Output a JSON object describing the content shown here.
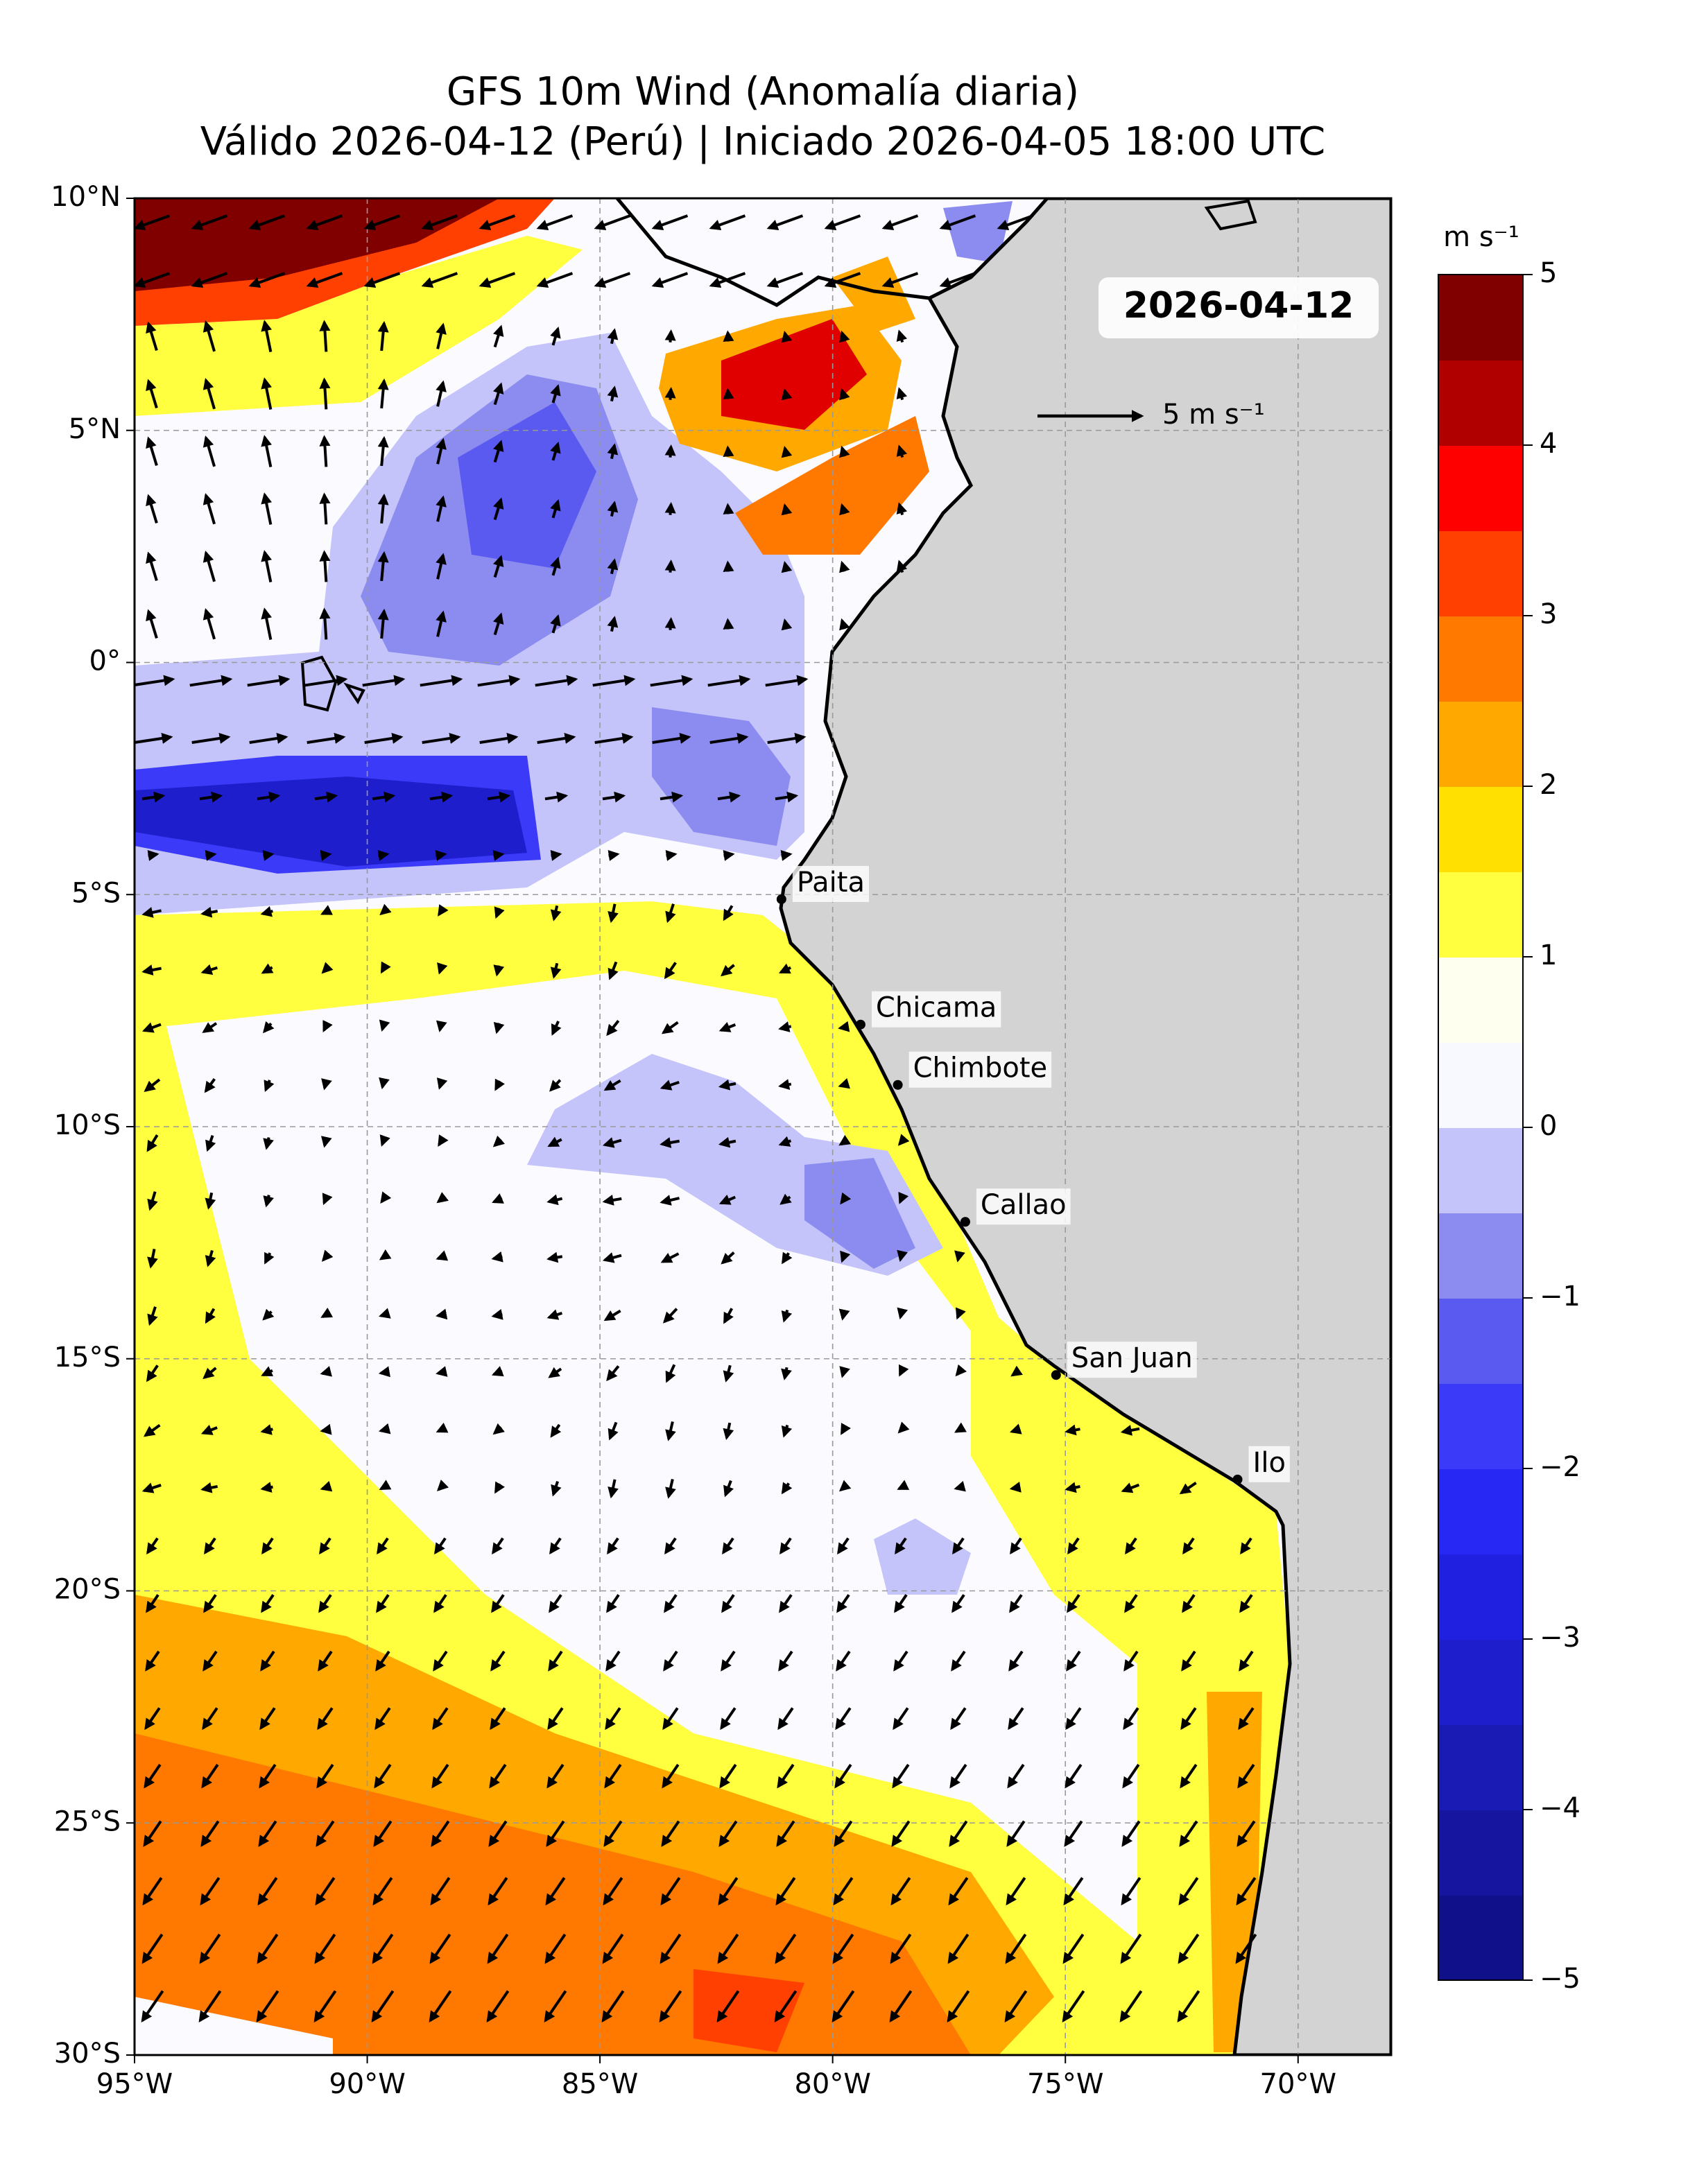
{
  "chart_data": {
    "type": "map",
    "title": "GFS 10m Wind (Anomalía diaria)",
    "subtitle": "Válido 2026-04-12 (Perú) | Iniciado 2026-04-05 18:00 UTC",
    "date_label": "2026-04-12",
    "xlim": [
      -95,
      -68
    ],
    "ylim": [
      -30,
      10
    ],
    "xticks": [
      {
        "value": -95,
        "label": "95°W"
      },
      {
        "value": -90,
        "label": "90°W"
      },
      {
        "value": -85,
        "label": "85°W"
      },
      {
        "value": -80,
        "label": "80°W"
      },
      {
        "value": -75,
        "label": "75°W"
      },
      {
        "value": -70,
        "label": "70°W"
      }
    ],
    "yticks": [
      {
        "value": 10,
        "label": "10°N"
      },
      {
        "value": 5,
        "label": "5°N"
      },
      {
        "value": 0,
        "label": "0°"
      },
      {
        "value": -5,
        "label": "5°S"
      },
      {
        "value": -10,
        "label": "10°S"
      },
      {
        "value": -15,
        "label": "15°S"
      },
      {
        "value": -20,
        "label": "20°S"
      },
      {
        "value": -25,
        "label": "25°S"
      },
      {
        "value": -30,
        "label": "30°S"
      }
    ],
    "grid": true,
    "reference_arrow": {
      "value": 5,
      "label": "5 m s⁻¹"
    },
    "cities": [
      {
        "name": "Paita",
        "lon": -81.1,
        "lat": -5.1
      },
      {
        "name": "Chicama",
        "lon": -79.4,
        "lat": -7.8
      },
      {
        "name": "Chimbote",
        "lon": -78.6,
        "lat": -9.1
      },
      {
        "name": "Callao",
        "lon": -77.15,
        "lat": -12.05
      },
      {
        "name": "San Juan",
        "lon": -75.2,
        "lat": -15.35
      },
      {
        "name": "Ilo",
        "lon": -71.3,
        "lat": -17.6
      }
    ],
    "colorbar": {
      "label": "m s⁻¹",
      "lim": [
        -5,
        5
      ],
      "colors": [
        "#10108a",
        "#1515a0",
        "#1a1ab5",
        "#1e1ecc",
        "#2020e0",
        "#2828f5",
        "#3a3af8",
        "#5a5af0",
        "#8c8cf0",
        "#c4c4fa",
        "#f8f8ff",
        "#fffff0",
        "#ffff40",
        "#ffe000",
        "#ffa800",
        "#ff7800",
        "#ff4000",
        "#ff0000",
        "#b00000",
        "#800000"
      ],
      "ticks": [
        {
          "value": -5,
          "label": "−5"
        },
        {
          "value": -4,
          "label": "−4"
        },
        {
          "value": -3,
          "label": "−3"
        },
        {
          "value": -2,
          "label": "−2"
        },
        {
          "value": -1,
          "label": "−1"
        },
        0,
        1,
        2,
        3,
        4,
        5
      ]
    }
  }
}
